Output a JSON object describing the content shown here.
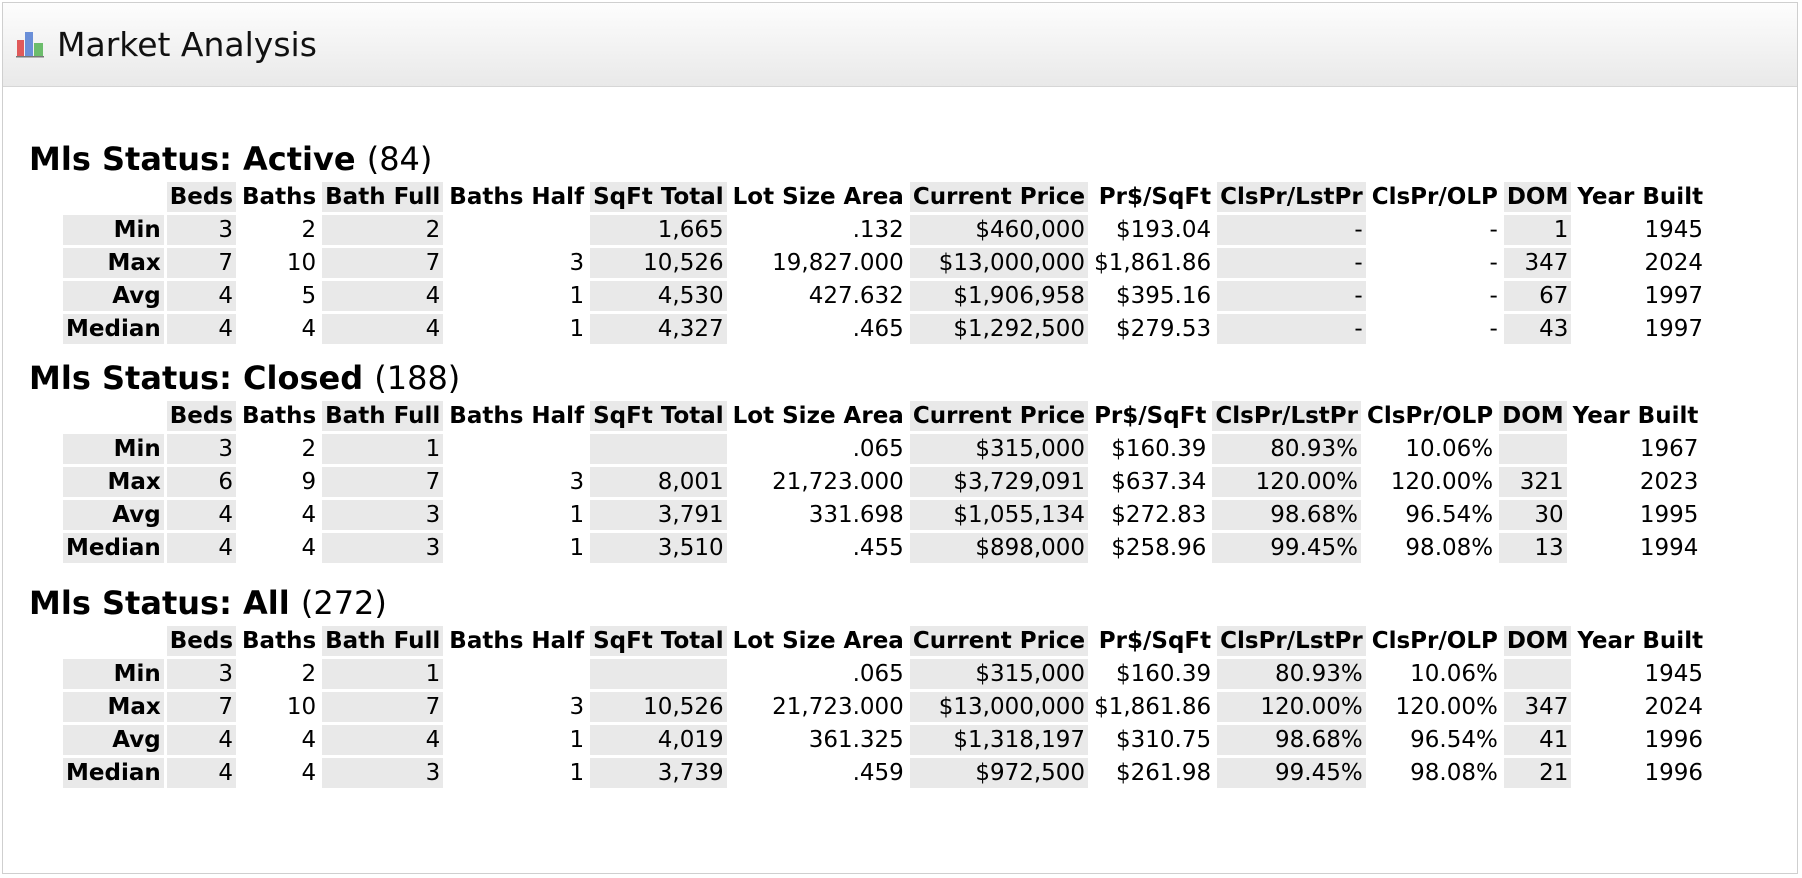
{
  "header": {
    "title": "Market Analysis",
    "icon": "bar-chart-icon"
  },
  "columns": [
    "Beds",
    "Baths",
    "Bath Full",
    "Baths Half",
    "SqFt Total",
    "Lot Size Area",
    "Current Price",
    "Pr$/SqFt",
    "ClsPr/LstPr",
    "ClsPr/OLP",
    "DOM",
    "Year Built"
  ],
  "row_labels": [
    "Min",
    "Max",
    "Avg",
    "Median"
  ],
  "sections": [
    {
      "label": "Mls Status: Active",
      "count": "(84)",
      "rows": [
        [
          "3",
          "2",
          "2",
          "",
          "1,665",
          ".132",
          "$460,000",
          "$193.04",
          "-",
          "-",
          "1",
          "1945"
        ],
        [
          "7",
          "10",
          "7",
          "3",
          "10,526",
          "19,827.000",
          "$13,000,000",
          "$1,861.86",
          "-",
          "-",
          "347",
          "2024"
        ],
        [
          "4",
          "5",
          "4",
          "1",
          "4,530",
          "427.632",
          "$1,906,958",
          "$395.16",
          "-",
          "-",
          "67",
          "1997"
        ],
        [
          "4",
          "4",
          "4",
          "1",
          "4,327",
          ".465",
          "$1,292,500",
          "$279.53",
          "-",
          "-",
          "43",
          "1997"
        ]
      ]
    },
    {
      "label": "Mls Status: Closed",
      "count": "(188)",
      "rows": [
        [
          "3",
          "2",
          "1",
          "",
          "",
          ".065",
          "$315,000",
          "$160.39",
          "80.93%",
          "10.06%",
          "",
          "1967"
        ],
        [
          "6",
          "9",
          "7",
          "3",
          "8,001",
          "21,723.000",
          "$3,729,091",
          "$637.34",
          "120.00%",
          "120.00%",
          "321",
          "2023"
        ],
        [
          "4",
          "4",
          "3",
          "1",
          "3,791",
          "331.698",
          "$1,055,134",
          "$272.83",
          "98.68%",
          "96.54%",
          "30",
          "1995"
        ],
        [
          "4",
          "4",
          "3",
          "1",
          "3,510",
          ".455",
          "$898,000",
          "$258.96",
          "99.45%",
          "98.08%",
          "13",
          "1994"
        ]
      ]
    },
    {
      "label": "Mls Status: All",
      "count": "(272)",
      "rows": [
        [
          "3",
          "2",
          "1",
          "",
          "",
          ".065",
          "$315,000",
          "$160.39",
          "80.93%",
          "10.06%",
          "",
          "1945"
        ],
        [
          "7",
          "10",
          "7",
          "3",
          "10,526",
          "21,723.000",
          "$13,000,000",
          "$1,861.86",
          "120.00%",
          "120.00%",
          "347",
          "2024"
        ],
        [
          "4",
          "4",
          "4",
          "1",
          "4,019",
          "361.325",
          "$1,318,197",
          "$310.75",
          "98.68%",
          "96.54%",
          "41",
          "1996"
        ],
        [
          "4",
          "4",
          "3",
          "1",
          "3,739",
          ".459",
          "$972,500",
          "$261.98",
          "99.45%",
          "98.08%",
          "21",
          "1996"
        ]
      ]
    }
  ]
}
